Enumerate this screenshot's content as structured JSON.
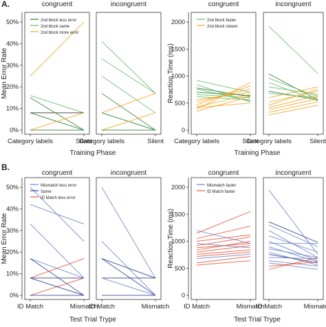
{
  "panel_labels": {
    "a": "A.",
    "b": "B."
  },
  "colors": {
    "dark_green": "#2e7d32",
    "mid_green": "#66bb6a",
    "orange": "#f5a623",
    "dark_blue": "#2c3e8f",
    "mid_blue": "#6f86c9",
    "red_orange": "#e8553a"
  },
  "chart_data": [
    {
      "id": "A1",
      "type": "line",
      "ylabel": "Mean Error Rate",
      "xlabel": "Training Phase",
      "yticks": [
        "0%",
        "10%",
        "20%",
        "30%",
        "40%",
        "50%"
      ],
      "ylim": [
        0,
        50
      ],
      "categories": [
        "Category labels",
        "Silent"
      ],
      "facets": [
        "congruent",
        "incongruent"
      ],
      "legend": [
        {
          "name": "2nd block less error",
          "color": "#2e7d32"
        },
        {
          "name": "2nd block same",
          "color": "#66bb6a"
        },
        {
          "name": "2nd block more error",
          "color": "#f5a623"
        }
      ],
      "series": [
        [
          {
            "values": [
              25,
              50
            ],
            "color": "#f5a623"
          },
          {
            "values": [
              16,
              8
            ],
            "color": "#66bb6a"
          },
          {
            "values": [
              8,
              8
            ],
            "color": "#2c2c2c"
          },
          {
            "values": [
              15,
              0
            ],
            "color": "#2e7d32"
          },
          {
            "values": [
              8,
              0
            ],
            "color": "#2e7d32"
          },
          {
            "values": [
              0,
              8
            ],
            "color": "#f5a623"
          },
          {
            "values": [
              0,
              0
            ],
            "color": "#2e7d32"
          }
        ],
        [
          {
            "values": [
              41,
              17
            ],
            "color": "#66bb6a"
          },
          {
            "values": [
              33,
              17
            ],
            "color": "#66bb6a"
          },
          {
            "values": [
              25,
              8
            ],
            "color": "#66bb6a"
          },
          {
            "values": [
              8,
              17
            ],
            "color": "#f5a623"
          },
          {
            "values": [
              17,
              0
            ],
            "color": "#2e7d32"
          },
          {
            "values": [
              8,
              0
            ],
            "color": "#2e7d32"
          },
          {
            "values": [
              0,
              8
            ],
            "color": "#f5a623"
          },
          {
            "values": [
              0,
              0
            ],
            "color": "#2e7d32"
          }
        ]
      ]
    },
    {
      "id": "A2",
      "type": "line",
      "ylabel": "Reaction Time (ms)",
      "xlabel": "Training Phase",
      "yticks": [
        "0",
        "500",
        "1000",
        "1500",
        "2000"
      ],
      "ylim": [
        0,
        2000
      ],
      "categories": [
        "Category labels",
        "Silent"
      ],
      "facets": [
        "congruent",
        "incongruent"
      ],
      "legend": [
        {
          "name": "2nd block faster",
          "color": "#66bb6a"
        },
        {
          "name": "2nd block slower",
          "color": "#f5a623"
        }
      ],
      "series": [
        [
          {
            "values": [
              920,
              700
            ],
            "color": "#66bb6a"
          },
          {
            "values": [
              840,
              520
            ],
            "color": "#66bb6a"
          },
          {
            "values": [
              780,
              620
            ],
            "color": "#2e7d32"
          },
          {
            "values": [
              760,
              540
            ],
            "color": "#66bb6a"
          },
          {
            "values": [
              700,
              640
            ],
            "color": "#2e7d32"
          },
          {
            "values": [
              660,
              600
            ],
            "color": "#66bb6a"
          },
          {
            "values": [
              620,
              560
            ],
            "color": "#66bb6a"
          },
          {
            "values": [
              560,
              700
            ],
            "color": "#f5a623"
          },
          {
            "values": [
              520,
              760
            ],
            "color": "#f5a623"
          },
          {
            "values": [
              470,
              820
            ],
            "color": "#f5a623"
          },
          {
            "values": [
              430,
              660
            ],
            "color": "#f5a623"
          },
          {
            "values": [
              390,
              880
            ],
            "color": "#f5a623"
          },
          {
            "values": [
              350,
              620
            ],
            "color": "#f5a623"
          },
          {
            "values": [
              420,
              500
            ],
            "color": "#f5a623"
          }
        ],
        [
          {
            "values": [
              1920,
              1050
            ],
            "color": "#66bb6a"
          },
          {
            "values": [
              1040,
              560
            ],
            "color": "#2e7d32"
          },
          {
            "values": [
              960,
              620
            ],
            "color": "#66bb6a"
          },
          {
            "values": [
              880,
              540
            ],
            "color": "#66bb6a"
          },
          {
            "values": [
              800,
              660
            ],
            "color": "#66bb6a"
          },
          {
            "values": [
              720,
              560
            ],
            "color": "#2e7d32"
          },
          {
            "values": [
              680,
              600
            ],
            "color": "#66bb6a"
          },
          {
            "values": [
              600,
              800
            ],
            "color": "#f5a623"
          },
          {
            "values": [
              520,
              720
            ],
            "color": "#f5a623"
          },
          {
            "values": [
              460,
              760
            ],
            "color": "#f5a623"
          },
          {
            "values": [
              420,
              640
            ],
            "color": "#f5a623"
          },
          {
            "values": [
              380,
              580
            ],
            "color": "#f5a623"
          },
          {
            "values": [
              330,
              520
            ],
            "color": "#f5a623"
          },
          {
            "values": [
              280,
              460
            ],
            "color": "#f5a623"
          }
        ]
      ]
    },
    {
      "id": "B1",
      "type": "line",
      "ylabel": "Mean Error Rate",
      "xlabel": "Test Trial Trype",
      "yticks": [
        "0%",
        "10%",
        "20%",
        "30%",
        "40%",
        "50%"
      ],
      "ylim": [
        0,
        50
      ],
      "categories": [
        "ID Match",
        "Mismatch"
      ],
      "facets": [
        "congruent",
        "incongruent"
      ],
      "legend": [
        {
          "name": "Mismatch less error",
          "color": "#6f86c9"
        },
        {
          "name": "Same",
          "color": "#2c3e8f"
        },
        {
          "name": "ID Match less error",
          "color": "#e8553a"
        }
      ],
      "series": [
        [
          {
            "values": [
              50,
              25
            ],
            "color": "#6f86c9"
          },
          {
            "values": [
              42,
              33
            ],
            "color": "#6f86c9"
          },
          {
            "values": [
              33,
              8
            ],
            "color": "#6f86c9"
          },
          {
            "values": [
              17,
              8
            ],
            "color": "#6f86c9"
          },
          {
            "values": [
              17,
              0
            ],
            "color": "#2c3e8f"
          },
          {
            "values": [
              8,
              17
            ],
            "color": "#e8553a"
          },
          {
            "values": [
              8,
              8
            ],
            "color": "#2c3e8f"
          },
          {
            "values": [
              0,
              8
            ],
            "color": "#e8553a"
          },
          {
            "values": [
              8,
              0
            ],
            "color": "#2c3e8f"
          },
          {
            "values": [
              0,
              0
            ],
            "color": "#2c3e8f"
          }
        ],
        [
          {
            "values": [
              50,
              8
            ],
            "color": "#6f86c9"
          },
          {
            "values": [
              25,
              0
            ],
            "color": "#6f86c9"
          },
          {
            "values": [
              17,
              8
            ],
            "color": "#2c3e8f"
          },
          {
            "values": [
              17,
              0
            ],
            "color": "#2c3e8f"
          },
          {
            "values": [
              8,
              8
            ],
            "color": "#2c3e8f"
          },
          {
            "values": [
              8,
              0
            ],
            "color": "#6f86c9"
          },
          {
            "values": [
              0,
              0
            ],
            "color": "#2c3e8f"
          }
        ]
      ]
    },
    {
      "id": "B2",
      "type": "line",
      "ylabel": "Reaction Time (ms)",
      "xlabel": "Test Trial Trype",
      "yticks": [
        "0",
        "500",
        "1000",
        "1500",
        "2000"
      ],
      "ylim": [
        0,
        2000
      ],
      "categories": [
        "ID Match",
        "Mismatch"
      ],
      "facets": [
        "congruent",
        "incongruent"
      ],
      "legend": [
        {
          "name": "Mismatch faster",
          "color": "#6f86c9"
        },
        {
          "name": "ID Match faster",
          "color": "#e8553a"
        }
      ],
      "series": [
        [
          {
            "values": [
              1200,
              960
            ],
            "color": "#6f86c9"
          },
          {
            "values": [
              1150,
              1550
            ],
            "color": "#e8553a"
          },
          {
            "values": [
              1050,
              1280
            ],
            "color": "#e8553a"
          },
          {
            "values": [
              1000,
              1120
            ],
            "color": "#e8553a"
          },
          {
            "values": [
              960,
              880
            ],
            "color": "#6f86c9"
          },
          {
            "values": [
              920,
              1080
            ],
            "color": "#e8553a"
          },
          {
            "values": [
              880,
              960
            ],
            "color": "#e8553a"
          },
          {
            "values": [
              840,
              1000
            ],
            "color": "#e8553a"
          },
          {
            "values": [
              800,
              920
            ],
            "color": "#e8553a"
          },
          {
            "values": [
              760,
              840
            ],
            "color": "#e8553a"
          },
          {
            "values": [
              720,
              800
            ],
            "color": "#e8553a"
          },
          {
            "values": [
              680,
              760
            ],
            "color": "#6f86c9"
          },
          {
            "values": [
              600,
              720
            ],
            "color": "#e8553a"
          },
          {
            "values": [
              560,
              640
            ],
            "color": "#e8553a"
          }
        ],
        [
          {
            "values": [
              1950,
              760
            ],
            "color": "#6f86c9"
          },
          {
            "values": [
              1360,
              980
            ],
            "color": "#2c3e8f"
          },
          {
            "values": [
              1300,
              900
            ],
            "color": "#6f86c9"
          },
          {
            "values": [
              1200,
              700
            ],
            "color": "#6f86c9"
          },
          {
            "values": [
              1100,
              800
            ],
            "color": "#6f86c9"
          },
          {
            "values": [
              1000,
              640
            ],
            "color": "#6f86c9"
          },
          {
            "values": [
              960,
              960
            ],
            "color": "#6f86c9"
          },
          {
            "values": [
              900,
              620
            ],
            "color": "#6f86c9"
          },
          {
            "values": [
              860,
              700
            ],
            "color": "#6f86c9"
          },
          {
            "values": [
              800,
              560
            ],
            "color": "#6f86c9"
          },
          {
            "values": [
              760,
              600
            ],
            "color": "#2c3e8f"
          },
          {
            "values": [
              700,
              680
            ],
            "color": "#6f86c9"
          },
          {
            "values": [
              640,
              540
            ],
            "color": "#6f86c9"
          },
          {
            "values": [
              600,
              480
            ],
            "color": "#6f86c9"
          },
          {
            "values": [
              480,
              700
            ],
            "color": "#e8553a"
          },
          {
            "values": [
              540,
              620
            ],
            "color": "#e8553a"
          }
        ]
      ]
    }
  ]
}
